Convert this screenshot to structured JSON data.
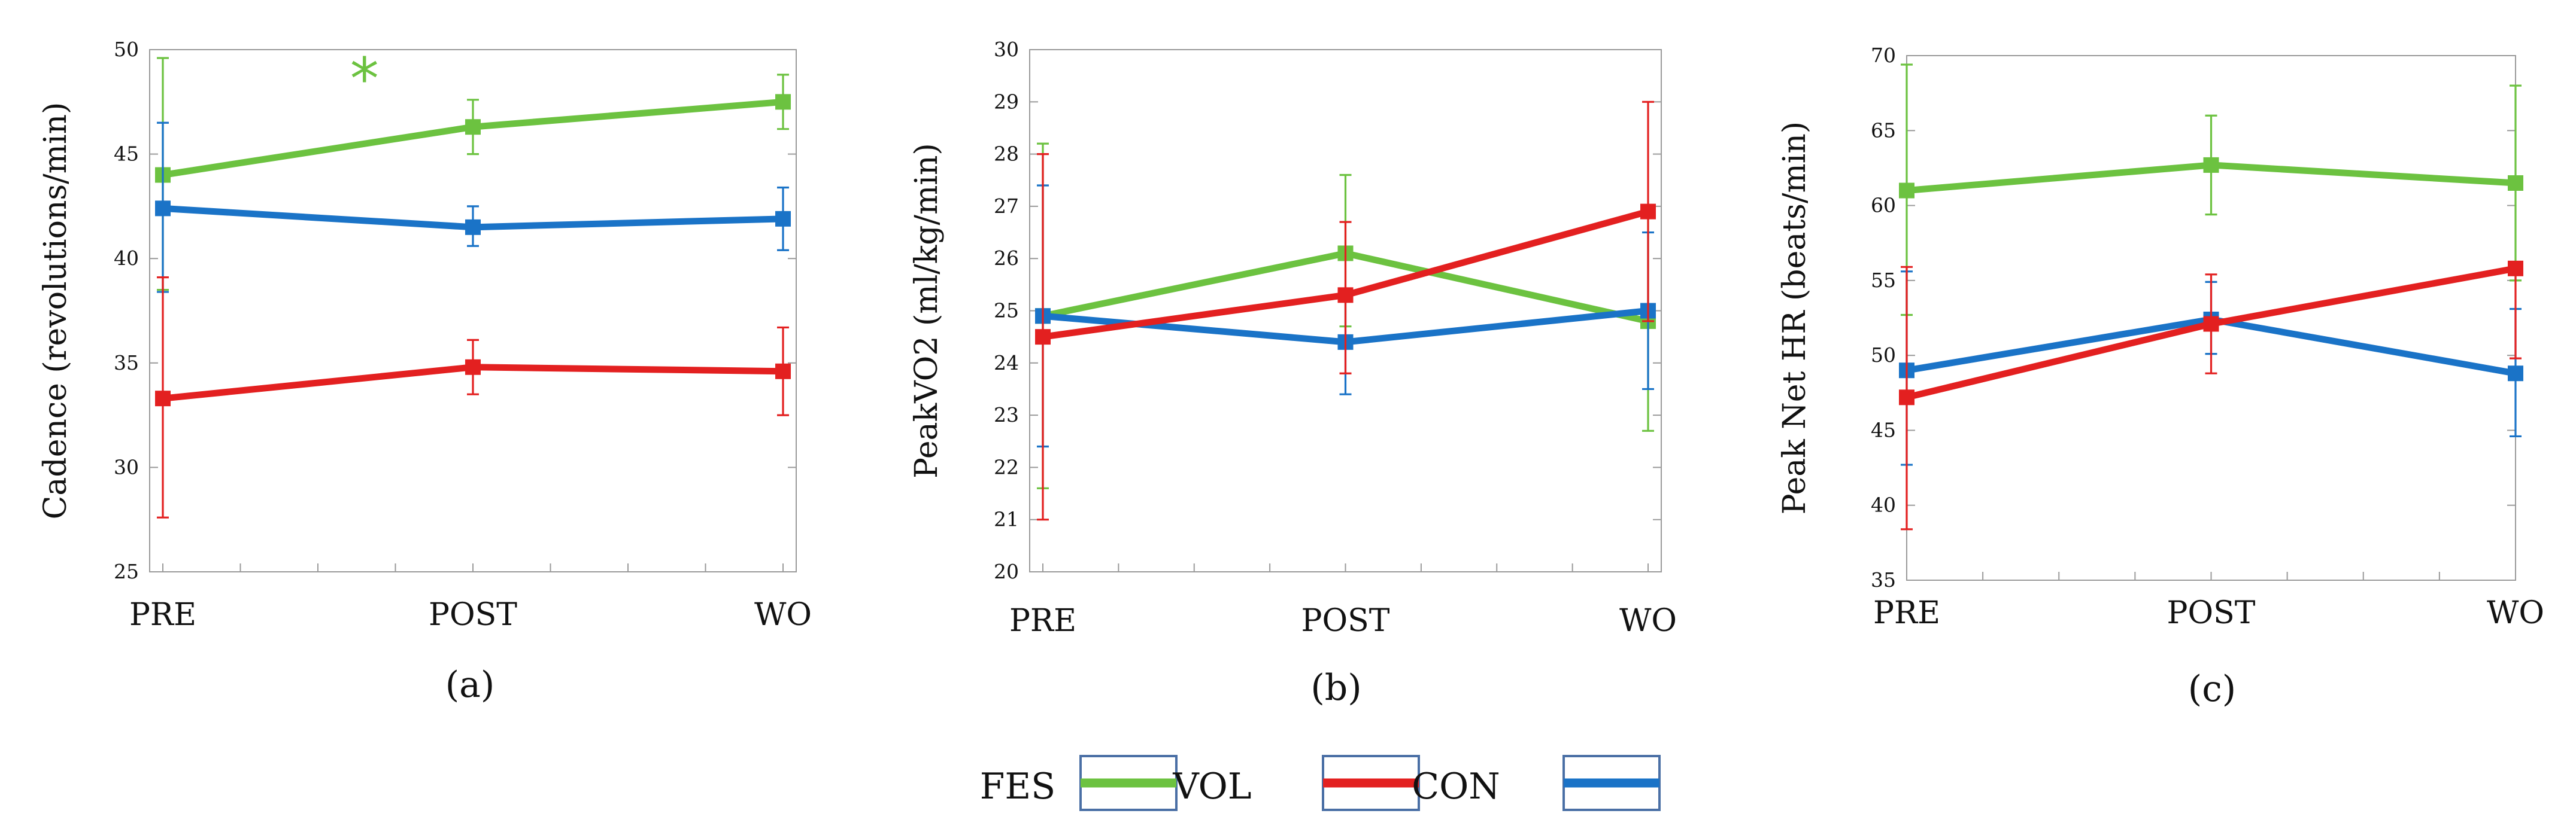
{
  "chart_data": [
    {
      "type": "line",
      "panel_label": "(a)",
      "ylabel": "Cadence (revolutions/min)",
      "xlabel": "",
      "categories": [
        "PRE",
        "POST",
        "WO"
      ],
      "ylim": [
        25,
        50
      ],
      "yticks": [
        25,
        30,
        35,
        40,
        45,
        50
      ],
      "grid": false,
      "annotation": {
        "text": "*",
        "color": "#6cc240",
        "x_between": [
          0,
          1
        ],
        "y": 48.8
      },
      "series": [
        {
          "name": "FES",
          "color": "#6cc240",
          "values": [
            44.0,
            46.3,
            47.5
          ],
          "err_low": [
            38.5,
            45.0,
            46.2
          ],
          "err_high": [
            49.6,
            47.6,
            48.8
          ]
        },
        {
          "name": "CON",
          "color": "#1a73c7",
          "values": [
            42.4,
            41.5,
            41.9
          ],
          "err_low": [
            38.4,
            40.6,
            40.4
          ],
          "err_high": [
            46.5,
            42.5,
            43.4
          ]
        },
        {
          "name": "VOL",
          "color": "#e32020",
          "values": [
            33.3,
            34.8,
            34.6
          ],
          "err_low": [
            27.6,
            33.5,
            32.5
          ],
          "err_high": [
            39.1,
            36.1,
            36.7
          ]
        }
      ]
    },
    {
      "type": "line",
      "panel_label": "(b)",
      "ylabel": "PeakVO2 (ml/kg/min)",
      "xlabel": "",
      "categories": [
        "PRE",
        "POST",
        "WO"
      ],
      "ylim": [
        20,
        30
      ],
      "yticks": [
        20,
        21,
        22,
        23,
        24,
        25,
        26,
        27,
        28,
        29,
        30
      ],
      "grid": false,
      "series": [
        {
          "name": "FES",
          "color": "#6cc240",
          "values": [
            24.9,
            26.1,
            24.8
          ],
          "err_low": [
            21.6,
            24.7,
            22.7
          ],
          "err_high": [
            28.2,
            27.6,
            26.9
          ]
        },
        {
          "name": "CON",
          "color": "#1a73c7",
          "values": [
            24.9,
            24.4,
            25.0
          ],
          "err_low": [
            22.4,
            23.4,
            23.5
          ],
          "err_high": [
            27.4,
            25.4,
            26.5
          ]
        },
        {
          "name": "VOL",
          "color": "#e32020",
          "values": [
            24.5,
            25.3,
            26.9
          ],
          "err_low": [
            21.0,
            23.8,
            24.8
          ],
          "err_high": [
            28.0,
            26.7,
            29.0
          ]
        }
      ]
    },
    {
      "type": "line",
      "panel_label": "(c)",
      "ylabel": "Peak Net HR (beats/min)",
      "xlabel": "",
      "categories": [
        "PRE",
        "POST",
        "WO"
      ],
      "ylim": [
        35,
        70
      ],
      "yticks": [
        35,
        40,
        45,
        50,
        55,
        60,
        65,
        70
      ],
      "grid": false,
      "series": [
        {
          "name": "FES",
          "color": "#6cc240",
          "values": [
            61.0,
            62.7,
            61.5
          ],
          "err_low": [
            52.7,
            59.4,
            55.0
          ],
          "err_high": [
            69.4,
            66.0,
            68.0
          ]
        },
        {
          "name": "CON",
          "color": "#1a73c7",
          "values": [
            49.0,
            52.4,
            48.8
          ],
          "err_low": [
            42.7,
            50.1,
            44.6
          ],
          "err_high": [
            55.6,
            54.9,
            53.1
          ]
        },
        {
          "name": "VOL",
          "color": "#e32020",
          "values": [
            47.2,
            52.1,
            55.8
          ],
          "err_low": [
            38.4,
            48.8,
            49.8
          ],
          "err_high": [
            55.9,
            55.4,
            56.1
          ]
        }
      ]
    }
  ],
  "legend": {
    "entries": [
      {
        "name": "FES",
        "color": "#6cc240"
      },
      {
        "name": "VOL",
        "color": "#e32020"
      },
      {
        "name": "CON",
        "color": "#1a73c7"
      }
    ],
    "swatch_border_color": "#4a6fa5"
  }
}
